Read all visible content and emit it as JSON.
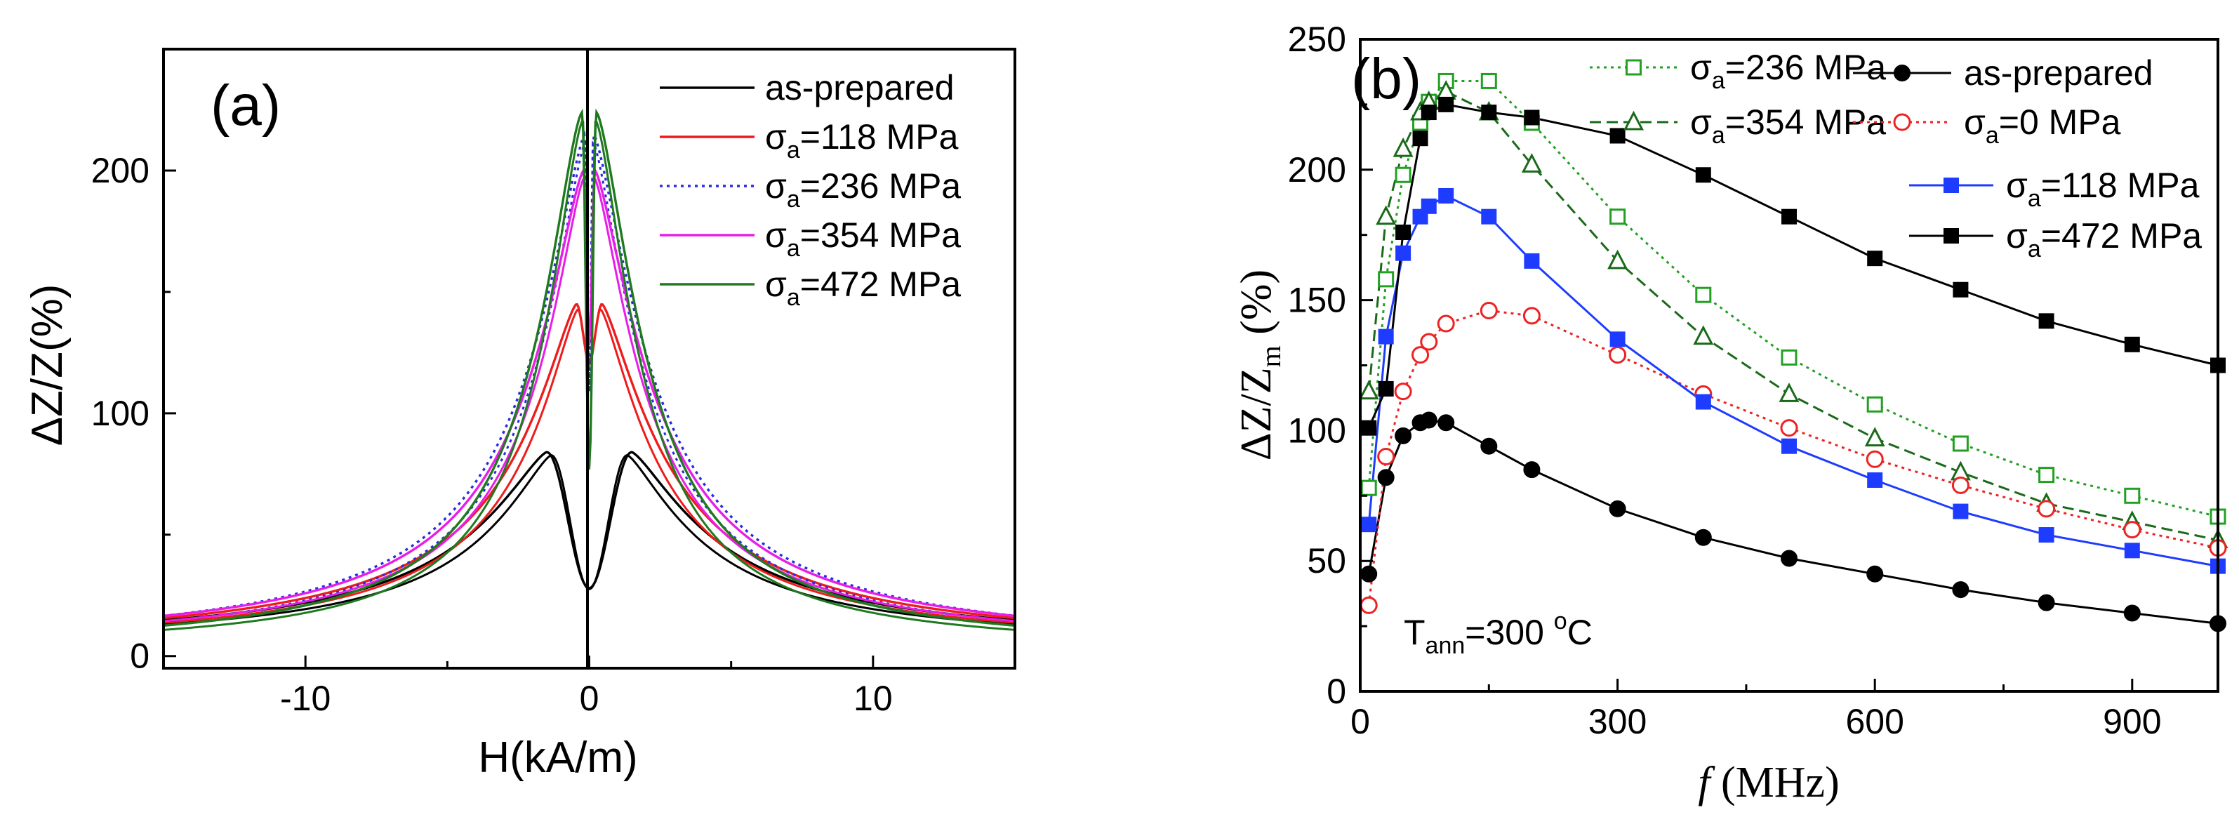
{
  "chart_data": [
    {
      "id": "a",
      "type": "line",
      "panel_label": "(a)",
      "xlabel": "H(kA/m)",
      "ylabel": "ΔZ/Z(%)",
      "xlim": [
        -15,
        15
      ],
      "ylim": [
        -5,
        250
      ],
      "xticks": [
        -10,
        0,
        10
      ],
      "xtick_labels": [
        "-10",
        "0",
        "10"
      ],
      "yticks": [
        0,
        100,
        200
      ],
      "ytick_labels": [
        "0",
        "100",
        "200"
      ],
      "legend_position": "top-right",
      "series": [
        {
          "key": "asp",
          "name": "as-prepared",
          "label_main": "as-prepared",
          "label_sub": "",
          "label_rest": "",
          "color": "#000000",
          "dash": "solid",
          "peak": 84,
          "center": 1.5,
          "dip": 28,
          "peak2": 0,
          "center2": 0,
          "dip_width": 0.4,
          "tail_scale": 3.4,
          "tail_pow": 1.35,
          "tail_end": 4
        },
        {
          "key": "s118",
          "name": "σa=118 MPa",
          "label_main": "σ",
          "label_sub": "a",
          "label_rest": "=118 MPa",
          "color": "#ee1c1c",
          "dash": "solid",
          "peak": 145,
          "center": 0.45,
          "dip": 122,
          "peak2": 0,
          "center2": 0,
          "dip_width": 0.12,
          "tail_scale": 2.6,
          "tail_pow": 1.35,
          "tail_end": 3
        },
        {
          "key": "s236",
          "name": "σa=236 MPa",
          "label_main": "σ",
          "label_sub": "a",
          "label_rest": "=236 MPa",
          "color": "#2a2ae0",
          "dash": "dotted",
          "peak": 215,
          "center": 0.15,
          "dip": 110,
          "peak2": 0,
          "center2": 0,
          "dip_width": 0.06,
          "tail_scale": 2.3,
          "tail_pow": 1.4,
          "tail_end": 2
        },
        {
          "key": "s354",
          "name": "σa=354 MPa",
          "label_main": "σ",
          "label_sub": "a",
          "label_rest": "=354 MPa",
          "color": "#e81ee8",
          "dash": "solid",
          "peak": 200,
          "center": 0.2,
          "dip": 130,
          "peak2": 0,
          "center2": 0,
          "dip_width": 0.08,
          "tail_scale": 2.3,
          "tail_pow": 1.4,
          "tail_end": 3
        },
        {
          "key": "s472",
          "name": "σa=472 MPa",
          "label_main": "σ",
          "label_sub": "a",
          "label_rest": "=472 MPa",
          "color": "#1f7a1f",
          "dash": "solid",
          "peak": 224,
          "center": 0.25,
          "dip": 78,
          "peak2": 180,
          "center2": 0.9,
          "dip_width": 0.05,
          "tail_scale": 2.0,
          "tail_pow": 1.5,
          "tail_end": 2
        }
      ]
    },
    {
      "id": "b",
      "type": "line",
      "panel_label": "(b)",
      "xlabel_italic": "f",
      "xlabel_rest": " (MHz)",
      "ylabel_main": "ΔZ/Z",
      "ylabel_sub": "m",
      "ylabel_rest": " (%)",
      "annotation_main": "T",
      "annotation_sub": "ann",
      "annotation_rest": "=300 ",
      "annotation_sup": "o",
      "annotation_unit": "C",
      "xlim": [
        0,
        1000
      ],
      "ylim": [
        0,
        250
      ],
      "xticks": [
        0,
        300,
        600,
        900
      ],
      "xtick_labels": [
        "0",
        "300",
        "600",
        "900"
      ],
      "yticks": [
        0,
        50,
        100,
        150,
        200,
        250
      ],
      "ytick_labels": [
        "0",
        "50",
        "100",
        "150",
        "200",
        "250"
      ],
      "legend_position": "top-right",
      "x": [
        10,
        30,
        50,
        70,
        80,
        100,
        150,
        200,
        300,
        400,
        500,
        600,
        700,
        800,
        900,
        1000
      ],
      "series": [
        {
          "key": "s236",
          "name": "σa=236 MPa",
          "label_main": "σ",
          "label_sub": "a",
          "label_rest": "=236 MPa",
          "color": "#22a022",
          "dash": "dotted",
          "marker": "square-open",
          "values": [
            78,
            158,
            198,
            218,
            226,
            234,
            234,
            218,
            182,
            152,
            128,
            110,
            95,
            83,
            75,
            67
          ]
        },
        {
          "key": "s354",
          "name": "σa=354 MPa",
          "label_main": "σ",
          "label_sub": "a",
          "label_rest": "=354 MPa",
          "color": "#1a6a1a",
          "dash": "dashed",
          "marker": "triangle-open",
          "values": [
            115,
            182,
            208,
            222,
            226,
            230,
            222,
            202,
            165,
            136,
            114,
            97,
            84,
            72,
            65,
            58
          ]
        },
        {
          "key": "asp",
          "name": "as-prepared",
          "label_main": "as-prepared",
          "label_sub": "",
          "label_rest": "",
          "color": "#000000",
          "dash": "solid",
          "marker": "circle-filled",
          "values": [
            45,
            82,
            98,
            103,
            104,
            103,
            94,
            85,
            70,
            59,
            51,
            45,
            39,
            34,
            30,
            26
          ]
        },
        {
          "key": "s0",
          "name": "σa=0 MPa",
          "label_main": "σ",
          "label_sub": "a",
          "label_rest": "=0 MPa",
          "color": "#ee2222",
          "dash": "dotted",
          "marker": "circle-open",
          "values": [
            33,
            90,
            115,
            129,
            134,
            141,
            146,
            144,
            129,
            114,
            101,
            89,
            79,
            70,
            62,
            55
          ]
        },
        {
          "key": "s118",
          "name": "σa=118 MPa",
          "label_main": "σ",
          "label_sub": "a",
          "label_rest": "=118 MPa",
          "color": "#1e3cff",
          "dash": "solid",
          "marker": "square-filled",
          "values": [
            64,
            136,
            168,
            182,
            186,
            190,
            182,
            165,
            135,
            111,
            94,
            81,
            69,
            60,
            54,
            48
          ]
        },
        {
          "key": "s472",
          "name": "σa=472 MPa",
          "label_main": "σ",
          "label_sub": "a",
          "label_rest": "=472 MPa",
          "color": "#000000",
          "dash": "solid",
          "marker": "square-filled",
          "values": [
            101,
            116,
            176,
            212,
            222,
            225,
            222,
            220,
            213,
            198,
            182,
            166,
            154,
            142,
            133,
            125
          ]
        }
      ]
    }
  ]
}
